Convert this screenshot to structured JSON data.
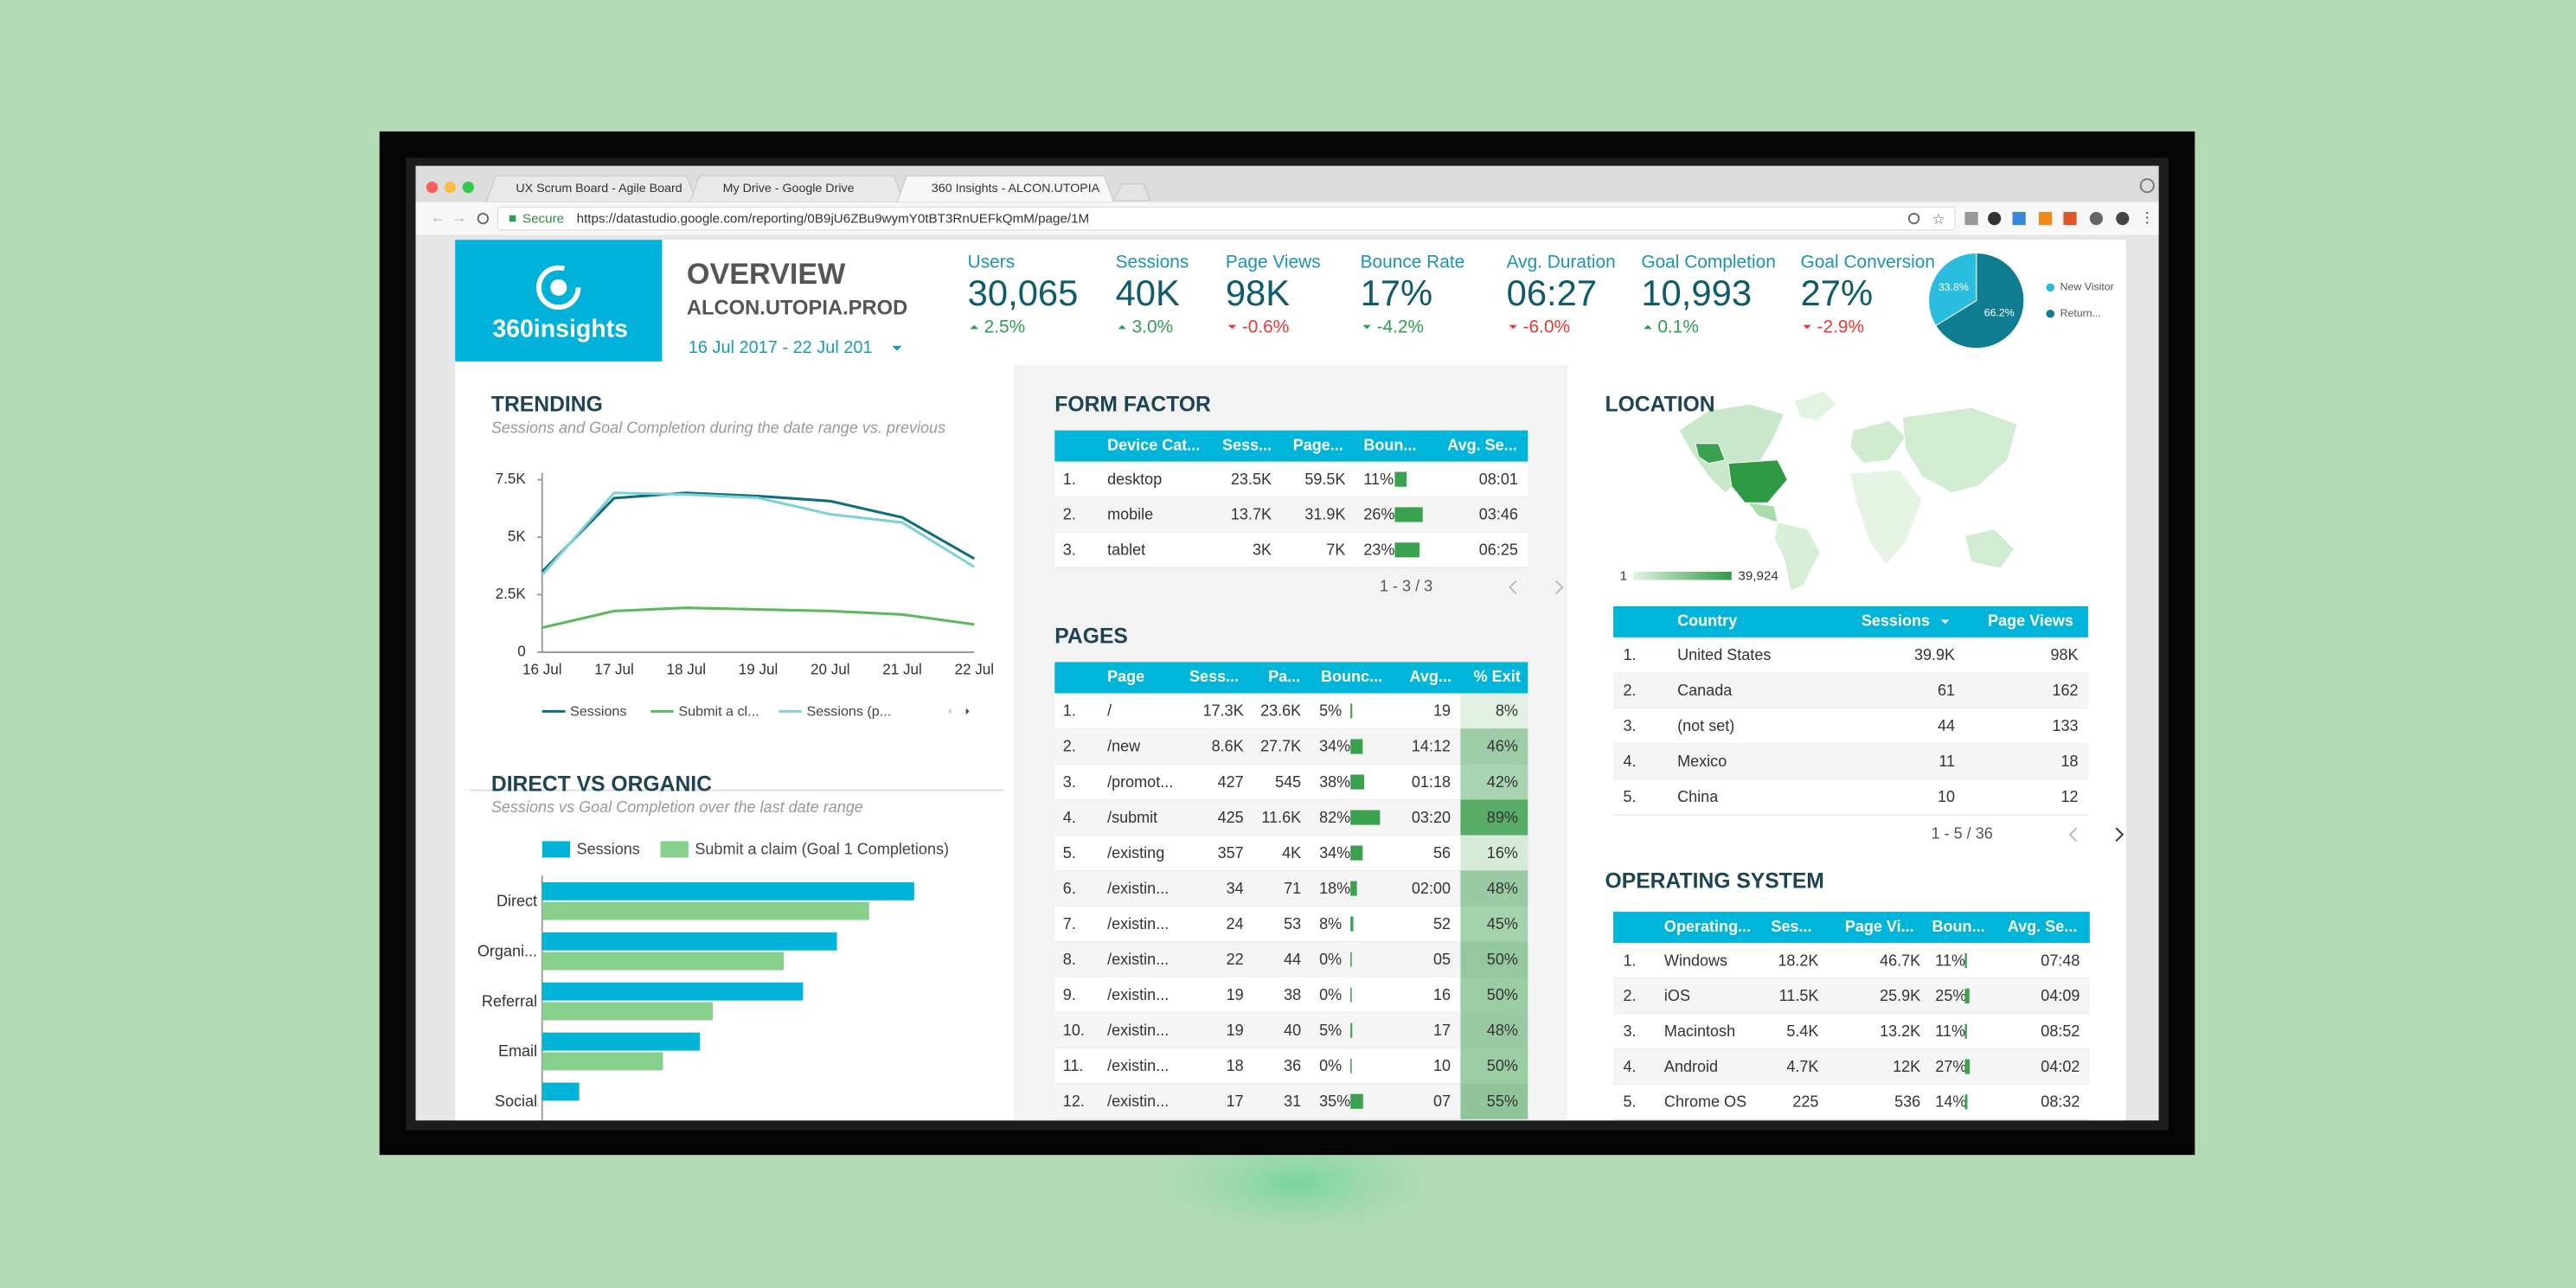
{
  "browser": {
    "tabs": [
      "UX Scrum Board - Agile Board",
      "My Drive - Google Drive",
      "360 Insights - ALCON.UTOPIA"
    ],
    "secure": "Secure",
    "url": "https://datastudio.google.com/reporting/0B9jU6ZBu9wymY0tBT3RnUEFkQmM/page/1M"
  },
  "header": {
    "logo": "360insights",
    "title": "OVERVIEW",
    "subtitle": "ALCON.UTOPIA.PROD",
    "date_range": "16 Jul 2017 - 22 Jul 201"
  },
  "kpis": [
    {
      "label": "Users",
      "value": "30,065",
      "change": "2.5%",
      "direction": "up",
      "color": "#2e9e4f"
    },
    {
      "label": "Sessions",
      "value": "40K",
      "change": "3.0%",
      "direction": "up",
      "color": "#2e9e4f"
    },
    {
      "label": "Page Views",
      "value": "98K",
      "change": "-0.6%",
      "direction": "down",
      "color": "#e53935"
    },
    {
      "label": "Bounce Rate",
      "value": "17%",
      "change": "-4.2%",
      "direction": "down",
      "color": "#2e9e4f"
    },
    {
      "label": "Avg. Duration",
      "value": "06:27",
      "change": "-6.0%",
      "direction": "down",
      "color": "#e53935"
    },
    {
      "label": "Goal Completion",
      "value": "10,993",
      "change": "0.1%",
      "direction": "up",
      "color": "#2e9e4f"
    },
    {
      "label": "Goal Conversion",
      "value": "27%",
      "change": "-2.9%",
      "direction": "down",
      "color": "#e53935"
    }
  ],
  "visitor_pie": {
    "type": "pie",
    "categories": [
      "New Visitor",
      "Return..."
    ],
    "values": [
      33.8,
      66.2
    ],
    "value_labels": [
      "33.8%",
      "66.2%"
    ],
    "colors": [
      "#2bbde0",
      "#0f7d91"
    ]
  },
  "trending": {
    "type": "line",
    "title": "TRENDING",
    "subtitle": "Sessions and Goal Completion during the date range vs. previous",
    "categories": [
      "16 Jul",
      "17 Jul",
      "18 Jul",
      "19 Jul",
      "20 Jul",
      "21 Jul",
      "22 Jul"
    ],
    "series": [
      {
        "name": "Sessions",
        "color": "#0e6e80",
        "values": [
          3500,
          6700,
          6930,
          6790,
          6570,
          5860,
          4070
        ]
      },
      {
        "name": "Submit a cl...",
        "color": "#5cb85c",
        "values": [
          1070,
          1790,
          1930,
          1860,
          1790,
          1640,
          1210
        ]
      },
      {
        "name": "Sessions (p...",
        "color": "#7fd0d8",
        "values": [
          3360,
          6930,
          6860,
          6710,
          6000,
          5640,
          3710
        ]
      }
    ],
    "ylim": [
      0,
      7500
    ],
    "yticks": [
      0,
      {
        "value": 2500,
        "label": "2.5K"
      },
      {
        "value": 5000,
        "label": "5K"
      },
      {
        "value": 7500,
        "label": "7.5K"
      }
    ]
  },
  "direct_vs_organic": {
    "type": "bar",
    "title": "DIRECT VS ORGANIC",
    "subtitle": "Sessions vs Goal Completion over the last date range",
    "categories": [
      "Direct",
      "Organi...",
      "Referral",
      "Email",
      "Social"
    ],
    "series": [
      {
        "name": "Sessions",
        "color": "#00b3d7",
        "values": [
          231,
          183,
          162,
          98,
          23
        ]
      },
      {
        "name": "Submit a claim (Goal 1 Completions)",
        "color": "#86d08c",
        "values": [
          203,
          150,
          106,
          75,
          null
        ]
      }
    ],
    "xlim": [
      0,
      255
    ]
  },
  "form_factor": {
    "title": "FORM FACTOR",
    "columns": [
      "Device Cat...",
      "Sess...",
      "Page...",
      "Boun...",
      "Avg. Se..."
    ],
    "rows": [
      [
        "1.",
        "desktop",
        "23.5K",
        "59.5K",
        "11%",
        "08:01"
      ],
      [
        "2.",
        "mobile",
        "13.7K",
        "31.9K",
        "26%",
        "03:46"
      ],
      [
        "3.",
        "tablet",
        "3K",
        "7K",
        "23%",
        "06:25"
      ]
    ],
    "pager": "1 - 3 / 3"
  },
  "pages": {
    "title": "PAGES",
    "columns": [
      "Page",
      "Sess...",
      "Pa...",
      "Bounc...",
      "Avg...",
      "% Exit"
    ],
    "rows": [
      [
        "1.",
        "/",
        "17.3K",
        "23.6K",
        "5%",
        "19",
        "8%"
      ],
      [
        "2.",
        "/new",
        "8.6K",
        "27.7K",
        "34%",
        "14:12",
        "46%"
      ],
      [
        "3.",
        "/promot...",
        "427",
        "545",
        "38%",
        "01:18",
        "42%"
      ],
      [
        "4.",
        "/submit",
        "425",
        "11.6K",
        "82%",
        "03:20",
        "89%"
      ],
      [
        "5.",
        "/existing",
        "357",
        "4K",
        "34%",
        "56",
        "16%"
      ],
      [
        "6.",
        "/existin...",
        "34",
        "71",
        "18%",
        "02:00",
        "48%"
      ],
      [
        "7.",
        "/existin...",
        "24",
        "53",
        "8%",
        "52",
        "45%"
      ],
      [
        "8.",
        "/existin...",
        "22",
        "44",
        "0%",
        "05",
        "50%"
      ],
      [
        "9.",
        "/existin...",
        "19",
        "38",
        "0%",
        "16",
        "50%"
      ],
      [
        "10.",
        "/existin...",
        "19",
        "40",
        "5%",
        "17",
        "48%"
      ],
      [
        "11.",
        "/existin...",
        "18",
        "36",
        "0%",
        "10",
        "50%"
      ],
      [
        "12.",
        "/existin...",
        "17",
        "31",
        "35%",
        "07",
        "55%"
      ]
    ]
  },
  "location": {
    "title": "LOCATION",
    "legend_min": "1",
    "legend_max": "39,924",
    "columns": [
      "Country",
      "Sessions",
      "Page Views"
    ],
    "rows": [
      [
        "1.",
        "United States",
        "39.9K",
        "98K"
      ],
      [
        "2.",
        "Canada",
        "61",
        "162"
      ],
      [
        "3.",
        "(not set)",
        "44",
        "133"
      ],
      [
        "4.",
        "Mexico",
        "11",
        "18"
      ],
      [
        "5.",
        "China",
        "10",
        "12"
      ]
    ],
    "pager": "1 - 5 / 36"
  },
  "operating_system": {
    "title": "OPERATING SYSTEM",
    "columns": [
      "Operating...",
      "Ses...",
      "Page Vi...",
      "Boun...",
      "Avg. Se..."
    ],
    "rows": [
      [
        "1.",
        "Windows",
        "18.2K",
        "46.7K",
        "11%",
        "07:48"
      ],
      [
        "2.",
        "iOS",
        "11.5K",
        "25.9K",
        "25%",
        "04:09"
      ],
      [
        "3.",
        "Macintosh",
        "5.4K",
        "13.2K",
        "11%",
        "08:52"
      ],
      [
        "4.",
        "Android",
        "4.7K",
        "12K",
        "27%",
        "04:02"
      ],
      [
        "5.",
        "Chrome OS",
        "225",
        "536",
        "14%",
        "08:32"
      ]
    ]
  }
}
